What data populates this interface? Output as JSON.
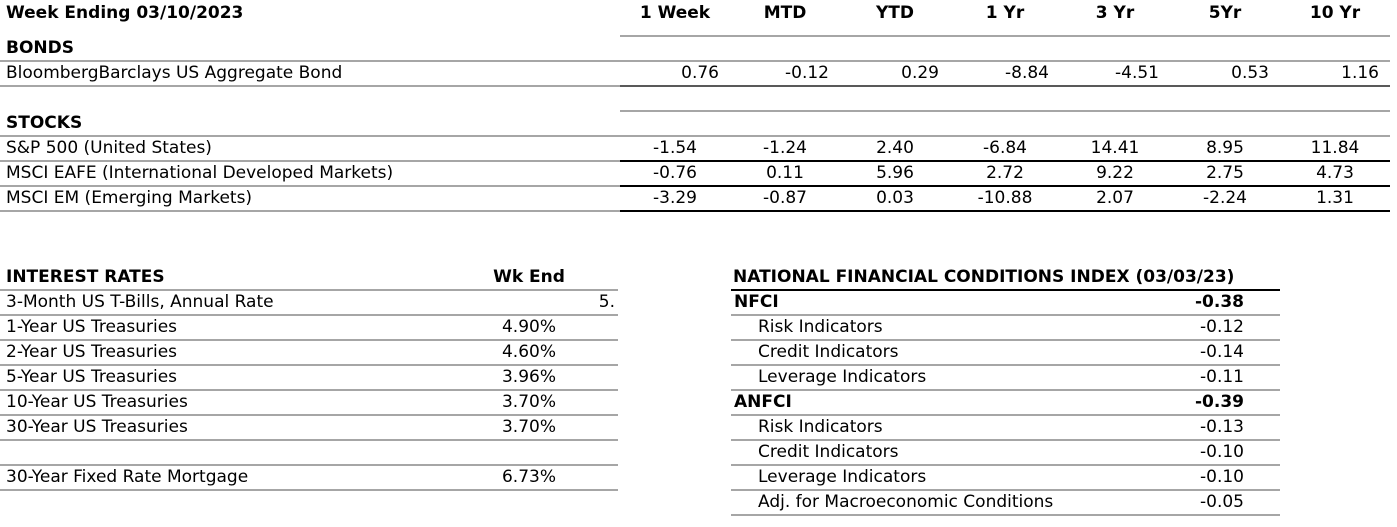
{
  "colors": {
    "grid_line": "#a6a6a6",
    "bond_rule": "#595959",
    "emphasis_rule": "#000000",
    "text": "#000000",
    "background": "#ffffff"
  },
  "performance_table": {
    "title": "Week Ending 03/10/2023",
    "column_headers": [
      "1 Week",
      "MTD",
      "YTD",
      "1 Yr",
      "3 Yr",
      "5Yr",
      "10 Yr"
    ],
    "sections": [
      {
        "heading": "BONDS",
        "rows": [
          {
            "label": "BloombergBarclays US Aggregate Bond",
            "values": [
              "0.76",
              "-0.12",
              "0.29",
              "-8.84",
              "-4.51",
              "0.53",
              "1.16"
            ]
          }
        ]
      },
      {
        "heading": "STOCKS",
        "rows": [
          {
            "label": "S&P 500 (United States)",
            "values": [
              "-1.54",
              "-1.24",
              "2.40",
              "-6.84",
              "14.41",
              "8.95",
              "11.84"
            ]
          },
          {
            "label": "MSCI EAFE (International Developed Markets)",
            "values": [
              "-0.76",
              "0.11",
              "5.96",
              "2.72",
              "9.22",
              "2.75",
              "4.73"
            ]
          },
          {
            "label": "MSCI EM (Emerging Markets)",
            "values": [
              "-3.29",
              "-0.87",
              "0.03",
              "-10.88",
              "2.07",
              "-2.24",
              "1.31"
            ]
          }
        ]
      }
    ]
  },
  "interest_rates": {
    "heading": "INTEREST RATES",
    "column_header": "Wk End",
    "rows": [
      {
        "label": "3-Month US T-Bills, Annual Rate",
        "value": "5."
      },
      {
        "label": "1-Year US Treasuries",
        "value": "4.90%"
      },
      {
        "label": "2-Year US Treasuries",
        "value": "4.60%"
      },
      {
        "label": "5-Year US Treasuries",
        "value": "3.96%"
      },
      {
        "label": "10-Year US Treasuries",
        "value": "3.70%"
      },
      {
        "label": "30-Year US Treasuries",
        "value": "3.70%"
      }
    ],
    "mortgage_row": {
      "label": "30-Year Fixed Rate Mortgage",
      "value": "6.73%"
    }
  },
  "nfci_index": {
    "heading": "NATIONAL FINANCIAL CONDITIONS INDEX (03/03/23)",
    "rows": [
      {
        "label": "NFCI",
        "value": "-0.38"
      },
      {
        "label": "Risk Indicators",
        "value": "-0.12"
      },
      {
        "label": "Credit Indicators",
        "value": "-0.14"
      },
      {
        "label": "Leverage Indicators",
        "value": "-0.11"
      },
      {
        "label": "ANFCI",
        "value": "-0.39"
      },
      {
        "label": "Risk Indicators",
        "value": "-0.13"
      },
      {
        "label": "Credit Indicators",
        "value": "-0.10"
      },
      {
        "label": "Leverage Indicators",
        "value": "-0.10"
      },
      {
        "label": "Adj. for Macroeconomic Conditions",
        "value": "-0.05"
      }
    ]
  }
}
